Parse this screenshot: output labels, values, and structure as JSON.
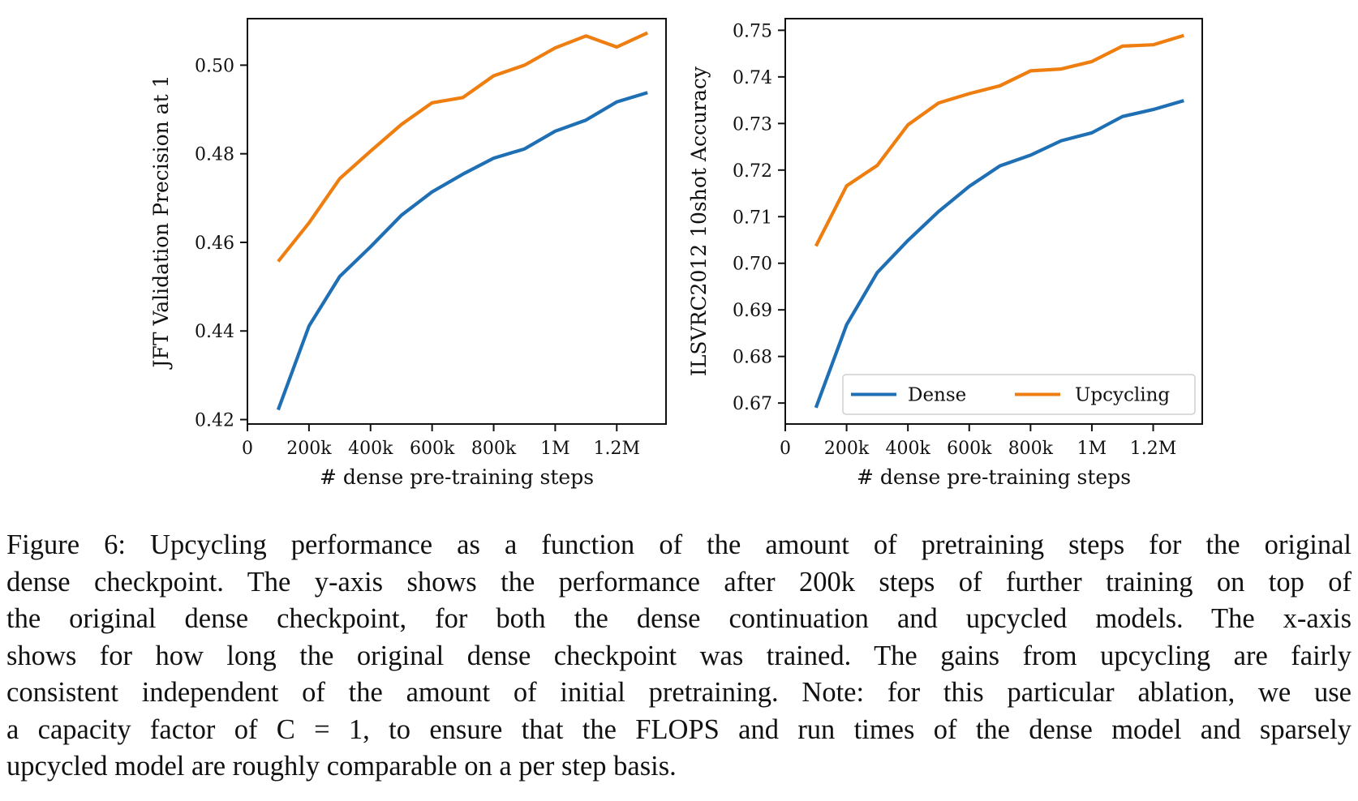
{
  "chart_data": [
    {
      "type": "line",
      "xlabel": "# dense pre-training steps",
      "ylabel": "JFT Validation Precision at 1",
      "x": [
        100000,
        200000,
        300000,
        400000,
        500000,
        600000,
        700000,
        800000,
        900000,
        1000000,
        1100000,
        1200000,
        1300000
      ],
      "xlim": [
        0,
        1360000
      ],
      "ylim": [
        0.419,
        0.5105
      ],
      "xticks": [
        0,
        200000,
        400000,
        600000,
        800000,
        1000000,
        1200000
      ],
      "xtick_labels": [
        "0",
        "200k",
        "400k",
        "600k",
        "800k",
        "1M",
        "1.2M"
      ],
      "yticks": [
        0.42,
        0.44,
        0.46,
        0.48,
        0.5
      ],
      "ytick_labels": [
        "0.42",
        "0.44",
        "0.46",
        "0.48",
        "0.50"
      ],
      "grid": false,
      "legend": null,
      "series": [
        {
          "name": "Dense",
          "color": "#1f6fb4",
          "values": [
            0.4222,
            0.4411,
            0.4523,
            0.459,
            0.4661,
            0.4714,
            0.4754,
            0.479,
            0.4811,
            0.4851,
            0.4876,
            0.4917,
            0.4938
          ]
        },
        {
          "name": "Upcycling",
          "color": "#ef7e10",
          "values": [
            0.4557,
            0.4644,
            0.4744,
            0.4806,
            0.4866,
            0.4915,
            0.4927,
            0.4976,
            0.5,
            0.5039,
            0.5066,
            0.5041,
            0.5073
          ]
        }
      ]
    },
    {
      "type": "line",
      "xlabel": "# dense pre-training steps",
      "ylabel": "ILSVRC2012 10shot Accuracy",
      "x": [
        100000,
        200000,
        300000,
        400000,
        500000,
        600000,
        700000,
        800000,
        900000,
        1000000,
        1100000,
        1200000,
        1300000
      ],
      "xlim": [
        0,
        1360000
      ],
      "ylim": [
        0.6655,
        0.7525
      ],
      "xticks": [
        0,
        200000,
        400000,
        600000,
        800000,
        1000000,
        1200000
      ],
      "xtick_labels": [
        "0",
        "200k",
        "400k",
        "600k",
        "800k",
        "1M",
        "1.2M"
      ],
      "yticks": [
        0.67,
        0.68,
        0.69,
        0.7,
        0.71,
        0.72,
        0.73,
        0.74,
        0.75
      ],
      "ytick_labels": [
        "0.67",
        "0.68",
        "0.69",
        "0.70",
        "0.71",
        "0.72",
        "0.73",
        "0.74",
        "0.75"
      ],
      "grid": false,
      "legend": "lower-right",
      "series": [
        {
          "name": "Dense",
          "color": "#1f6fb4",
          "values": [
            0.669,
            0.6868,
            0.698,
            0.7049,
            0.7111,
            0.7165,
            0.7209,
            0.7232,
            0.7263,
            0.728,
            0.7315,
            0.733,
            0.7349
          ]
        },
        {
          "name": "Upcycling",
          "color": "#ef7e10",
          "values": [
            0.7037,
            0.7166,
            0.721,
            0.7297,
            0.7344,
            0.7364,
            0.7381,
            0.7413,
            0.7417,
            0.7433,
            0.7466,
            0.7469,
            0.7489
          ]
        }
      ]
    }
  ],
  "caption": {
    "lines": [
      "Figure 6: Upcycling performance as a function of the amount of pretraining steps for the original",
      "dense checkpoint. The y-axis shows the performance after 200k steps of further training on top of",
      "the original dense checkpoint, for both the dense continuation and upcycled models.  The x-axis",
      "shows for how long the original dense checkpoint was trained. The gains from upcycling are fairly",
      "consistent independent of the amount of initial pretraining. Note: for this particular ablation, we use",
      "a capacity factor of C = 1, to ensure that the FLOPS and run times of the dense model and sparsely",
      "upcycled model are roughly comparable on a per step basis."
    ]
  }
}
